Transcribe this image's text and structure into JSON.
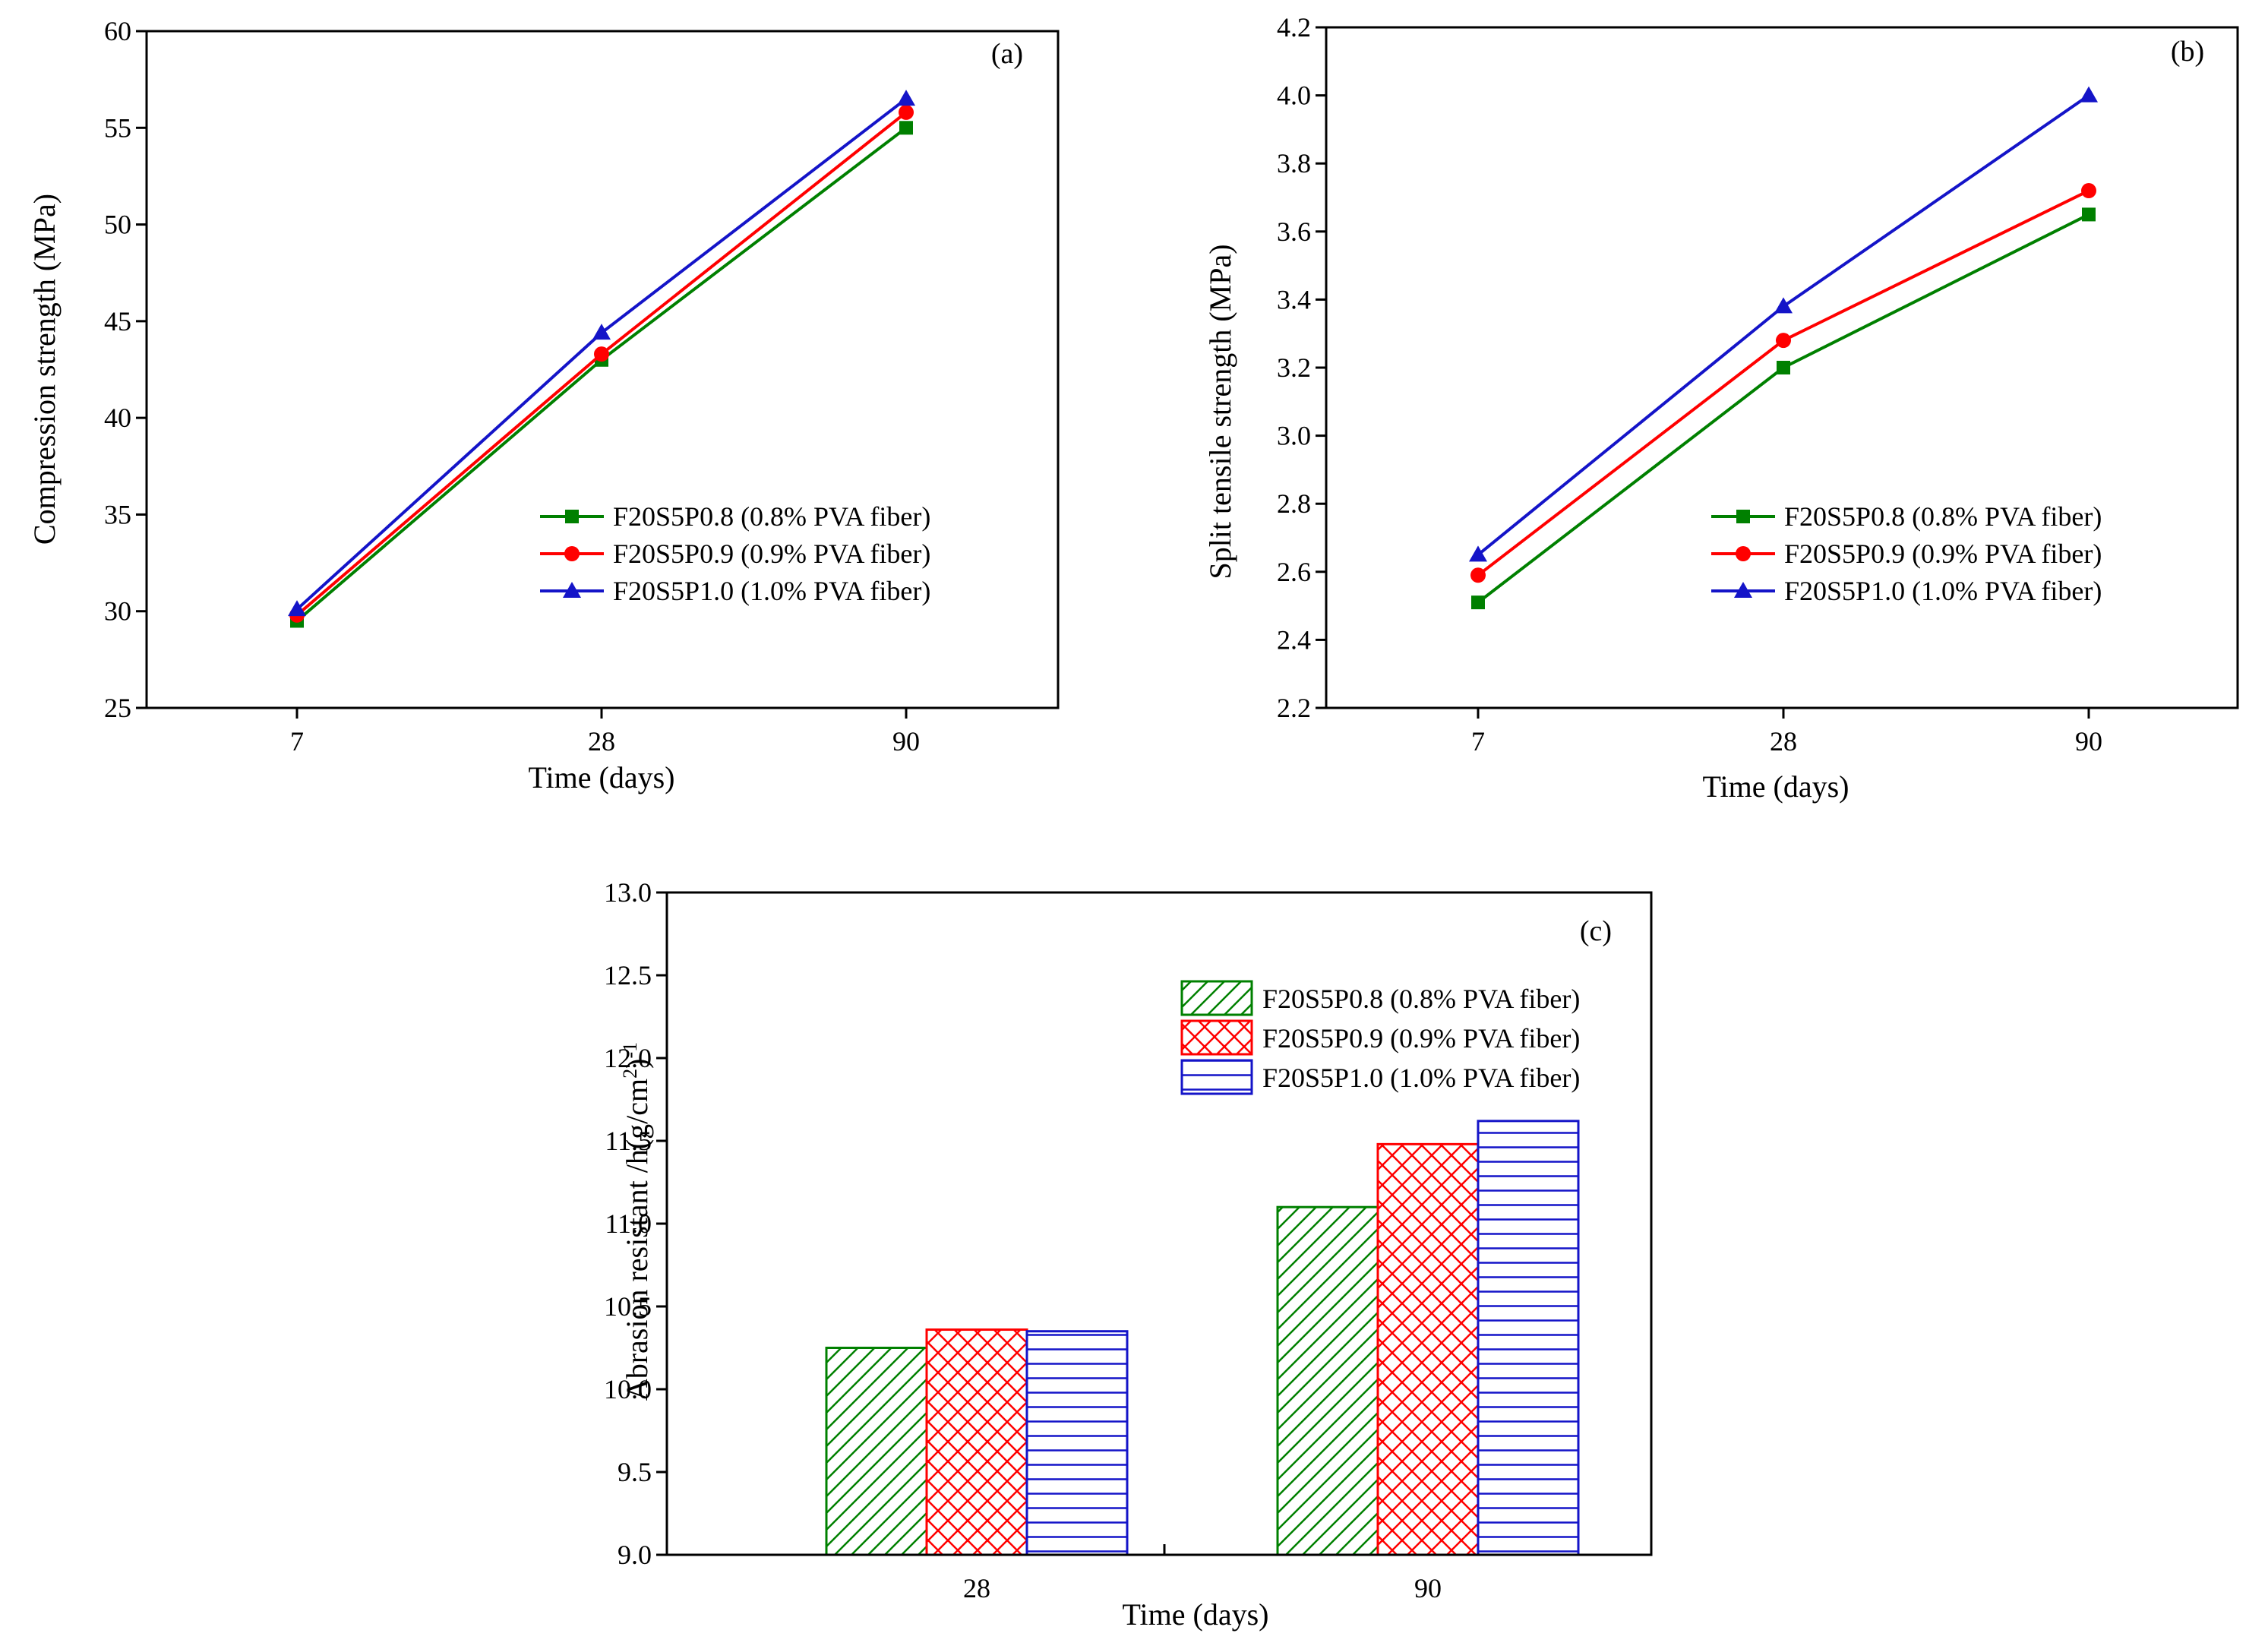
{
  "chart_data": [
    {
      "type": "line",
      "panel": "(a)",
      "x": [
        "7",
        "28",
        "90"
      ],
      "xlabel": "Time (days)",
      "ylabel": "Compression strength (MPa)",
      "ylim": [
        25,
        60
      ],
      "yticks": [
        25,
        30,
        35,
        40,
        45,
        50,
        55,
        60
      ],
      "grid": false,
      "legend": "center-right",
      "series": [
        {
          "name": "F20S5P0.8 (0.8% PVA fiber)",
          "values": [
            29.5,
            43.0,
            55.0
          ],
          "color": "#008000",
          "marker": "square"
        },
        {
          "name": "F20S5P0.9 (0.9% PVA fiber)",
          "values": [
            29.8,
            43.3,
            55.8
          ],
          "color": "#ff0000",
          "marker": "circle"
        },
        {
          "name": "F20S5P1.0 (1.0% PVA fiber)",
          "values": [
            30.1,
            44.4,
            56.5
          ],
          "color": "#1414c8",
          "marker": "triangle"
        }
      ]
    },
    {
      "type": "line",
      "panel": "(b)",
      "x": [
        "7",
        "28",
        "90"
      ],
      "xlabel": "Time (days)",
      "ylabel": "Split tensile strength (MPa)",
      "ylim": [
        2.2,
        4.2
      ],
      "yticks": [
        "2.2",
        "2.4",
        "2.6",
        "2.8",
        "3.0",
        "3.2",
        "3.4",
        "3.6",
        "3.8",
        "4.0",
        "4.2"
      ],
      "grid": false,
      "legend": "center-right",
      "series": [
        {
          "name": "F20S5P0.8 (0.8% PVA fiber)",
          "values": [
            2.51,
            3.2,
            3.65
          ],
          "color": "#008000",
          "marker": "square"
        },
        {
          "name": "F20S5P0.9 (0.9% PVA fiber)",
          "values": [
            2.59,
            3.28,
            3.72
          ],
          "color": "#ff0000",
          "marker": "circle"
        },
        {
          "name": "F20S5P1.0 (1.0% PVA fiber)",
          "values": [
            2.65,
            3.38,
            4.0
          ],
          "color": "#1414c8",
          "marker": "triangle"
        }
      ]
    },
    {
      "type": "bar",
      "panel": "(c)",
      "categories": [
        "28",
        "90"
      ],
      "xlabel": "Time (days)",
      "ylabel_main": "Abrasion resistant /h(g/cm",
      "ylabel_sup1": "2",
      "ylabel_close": ")",
      "ylabel_sup2": "-1",
      "ylim": [
        9.0,
        13.0
      ],
      "yticks": [
        "9.0",
        "9.5",
        "10.0",
        "10.5",
        "11.0",
        "11.5",
        "12.0",
        "12.5",
        "13.0"
      ],
      "grid": false,
      "legend": "top-right",
      "series": [
        {
          "name": "F20S5P0.8 (0.8% PVA fiber)",
          "values": [
            10.25,
            11.1
          ],
          "color": "#008000",
          "pattern": "diagonal"
        },
        {
          "name": "F20S5P0.9 (0.9% PVA fiber)",
          "values": [
            10.36,
            11.48
          ],
          "color": "#ff0000",
          "pattern": "crosshatch"
        },
        {
          "name": "F20S5P1.0 (1.0% PVA fiber)",
          "values": [
            10.35,
            11.62
          ],
          "color": "#1414c8",
          "pattern": "horizontal"
        }
      ]
    }
  ]
}
